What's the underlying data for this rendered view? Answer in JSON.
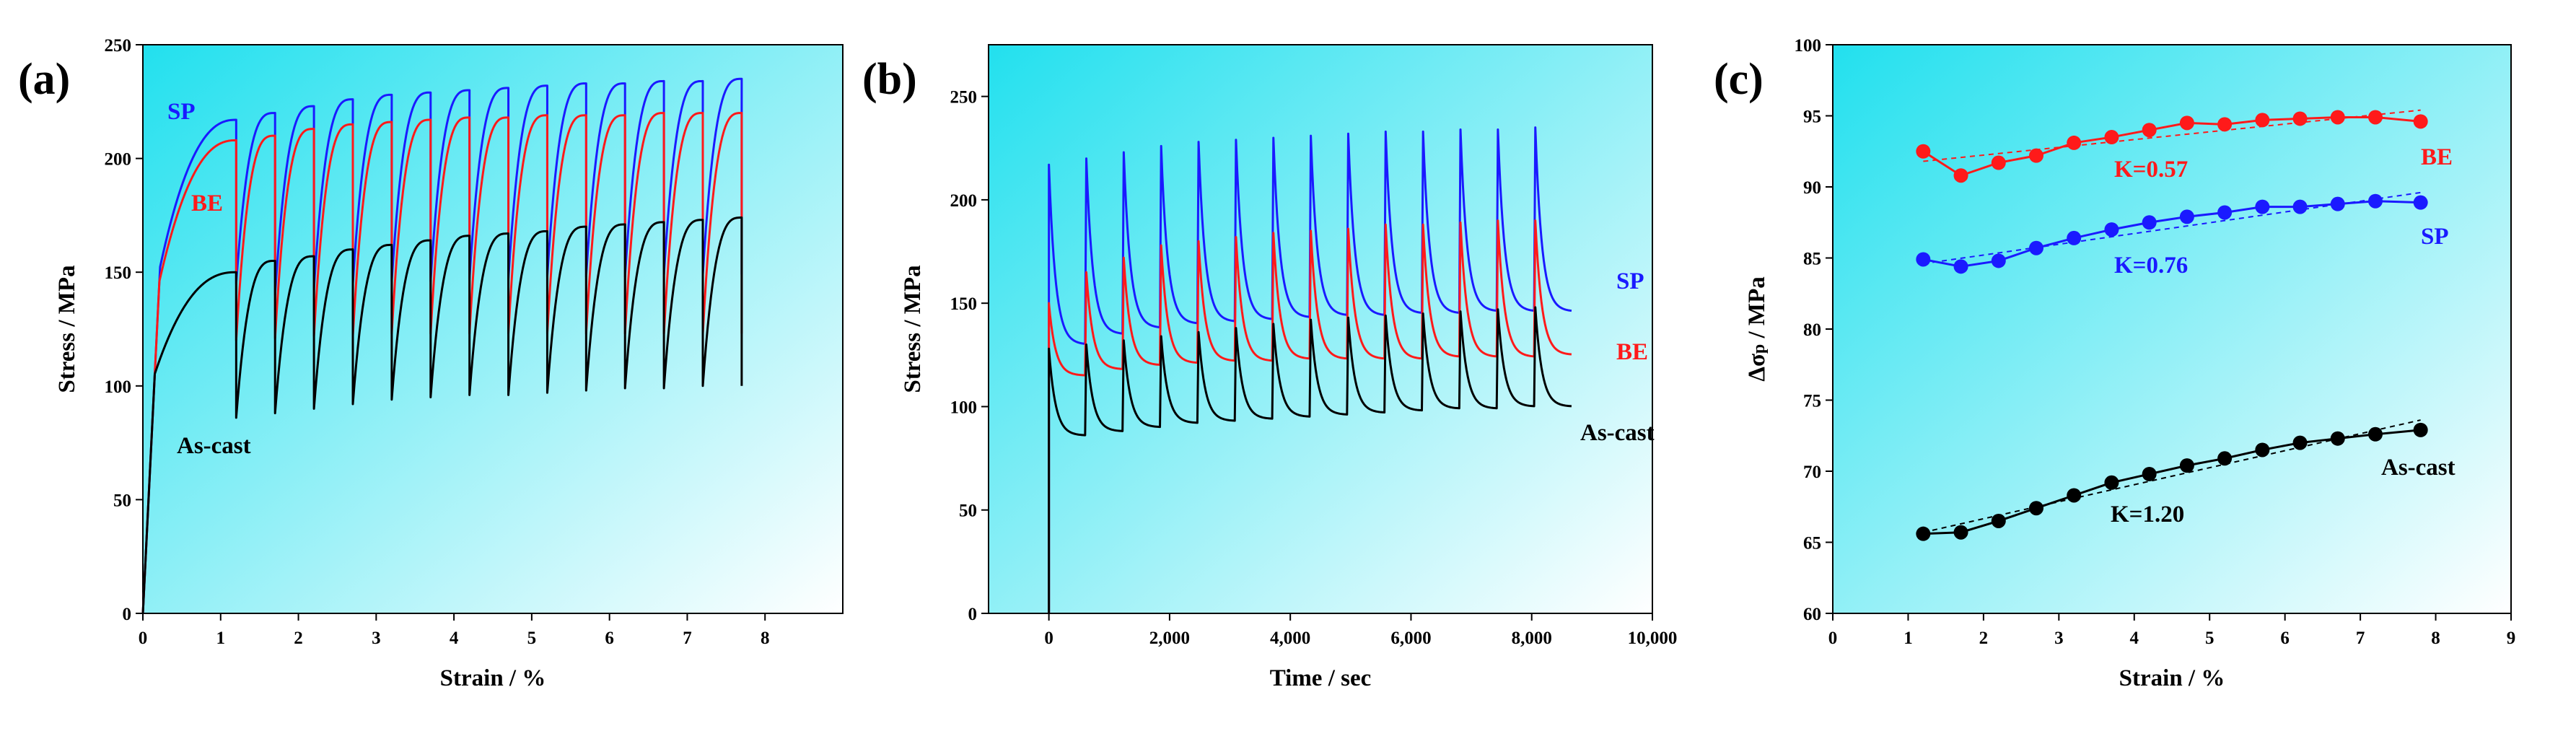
{
  "colors": {
    "SP": "#1a1aff",
    "BE": "#ff1a1a",
    "As-cast": "#000000",
    "bg_from": "#22e0ee",
    "bg_to": "#ffffff"
  },
  "chart_data": [
    {
      "type": "line",
      "panel": "(a)",
      "xlabel": "Strain / %",
      "ylabel": "Stress / MPa",
      "xlim": [
        0,
        9
      ],
      "ylim": [
        0,
        250
      ],
      "xticks": [
        0,
        1,
        2,
        3,
        4,
        5,
        6,
        7,
        8
      ],
      "yticks": [
        0,
        50,
        100,
        150,
        200,
        250
      ],
      "tick_labels_x": [
        "0",
        "1",
        "2",
        "3",
        "4",
        "5",
        "6",
        "7",
        "8"
      ],
      "tick_labels_y": [
        "0",
        "50",
        "100",
        "150",
        "200",
        "250"
      ],
      "relaxation_start_strain": [
        1.2,
        1.7,
        2.2,
        2.7,
        3.2,
        3.7,
        4.2,
        4.7,
        5.2,
        5.7,
        6.2,
        6.7,
        7.2,
        7.7
      ],
      "series": [
        {
          "name": "SP",
          "color": "#1a1aff",
          "label_pos": "upper-left",
          "peaks": [
            217,
            220,
            223,
            226,
            228,
            229,
            230,
            231,
            232,
            233,
            233,
            234,
            234,
            235
          ],
          "drops": [
            145,
            140,
            143,
            145,
            146,
            146,
            147,
            147,
            148,
            148,
            148,
            149,
            149,
            149
          ]
        },
        {
          "name": "BE",
          "color": "#ff1a1a",
          "label_pos": "upper-left",
          "peaks": [
            208,
            210,
            213,
            215,
            216,
            217,
            218,
            218,
            219,
            219,
            219,
            220,
            220,
            220
          ],
          "drops": [
            120,
            121,
            122,
            122,
            123,
            123,
            123,
            123,
            123,
            123,
            123,
            123,
            123,
            123
          ]
        },
        {
          "name": "As-cast",
          "color": "#000000",
          "label_pos": "lower-left",
          "peaks": [
            150,
            155,
            157,
            160,
            162,
            164,
            166,
            167,
            168,
            170,
            171,
            172,
            173,
            174
          ],
          "drops": [
            86,
            88,
            90,
            92,
            94,
            95,
            96,
            96,
            97,
            98,
            99,
            99,
            100,
            100
          ]
        }
      ]
    },
    {
      "type": "line",
      "panel": "(b)",
      "xlabel": "Time / sec",
      "ylabel": "Stress / MPa",
      "xlim": [
        -1000,
        10000
      ],
      "ylim": [
        0,
        275
      ],
      "xticks": [
        0,
        2000,
        4000,
        6000,
        8000,
        10000
      ],
      "yticks": [
        0,
        50,
        100,
        150,
        200,
        250
      ],
      "tick_labels_x": [
        "0",
        "2,000",
        "4,000",
        "6,000",
        "8,000",
        "10,000"
      ],
      "tick_labels_y": [
        "0",
        "50",
        "100",
        "150",
        "200",
        "250"
      ],
      "cycle_start_times": [
        0,
        620,
        1240,
        1860,
        2480,
        3100,
        3720,
        4340,
        4960,
        5580,
        6200,
        6820,
        7440,
        8060
      ],
      "cycle_duration": 600,
      "series": [
        {
          "name": "SP",
          "color": "#1a1aff",
          "label_pos": "right",
          "peaks": [
            217,
            220,
            223,
            226,
            228,
            229,
            230,
            231,
            232,
            233,
            233,
            234,
            234,
            235
          ],
          "ends": [
            130,
            135,
            138,
            140,
            141,
            142,
            143,
            144,
            144,
            145,
            145,
            146,
            146,
            146
          ]
        },
        {
          "name": "BE",
          "color": "#ff1a1a",
          "label_pos": "right",
          "peaks": [
            150,
            165,
            172,
            178,
            180,
            182,
            184,
            185,
            186,
            188,
            188,
            189,
            190,
            190
          ],
          "ends": [
            115,
            118,
            120,
            121,
            122,
            122,
            123,
            123,
            123,
            123,
            124,
            124,
            124,
            125
          ]
        },
        {
          "name": "As-cast",
          "color": "#000000",
          "label_pos": "right",
          "peaks": [
            128,
            130,
            132,
            134,
            136,
            138,
            140,
            142,
            143,
            144,
            145,
            146,
            147,
            148
          ],
          "ends": [
            86,
            88,
            90,
            92,
            93,
            94,
            95,
            96,
            97,
            98,
            99,
            99,
            100,
            100
          ]
        }
      ]
    },
    {
      "type": "scatter",
      "panel": "(c)",
      "xlabel": "Strain / %",
      "ylabel": "Δσ",
      "ylabel_sub": "p",
      "ylabel_suffix": " / MPa",
      "xlim": [
        0,
        9
      ],
      "ylim": [
        60,
        100
      ],
      "xticks": [
        0,
        1,
        2,
        3,
        4,
        5,
        6,
        7,
        8,
        9
      ],
      "yticks": [
        60,
        65,
        70,
        75,
        80,
        85,
        90,
        95,
        100
      ],
      "tick_labels_x": [
        "0",
        "1",
        "2",
        "3",
        "4",
        "5",
        "6",
        "7",
        "8",
        "9"
      ],
      "tick_labels_y": [
        "60",
        "65",
        "70",
        "75",
        "80",
        "85",
        "90",
        "95",
        "100"
      ],
      "x": [
        1.2,
        1.7,
        2.2,
        2.7,
        3.2,
        3.7,
        4.2,
        4.7,
        5.2,
        5.7,
        6.2,
        6.7,
        7.2,
        7.8
      ],
      "series": [
        {
          "name": "BE",
          "color": "#ff1a1a",
          "fit_label": "K=0.57",
          "values": [
            92.5,
            90.8,
            91.7,
            92.2,
            93.1,
            93.5,
            94.0,
            94.5,
            94.4,
            94.7,
            94.8,
            94.9,
            94.9,
            94.6
          ],
          "fit": [
            91.8,
            95.4
          ]
        },
        {
          "name": "SP",
          "color": "#1a1aff",
          "fit_label": "K=0.76",
          "values": [
            84.9,
            84.4,
            84.8,
            85.7,
            86.4,
            87.0,
            87.5,
            87.9,
            88.2,
            88.6,
            88.6,
            88.8,
            89.0,
            88.9
          ],
          "fit": [
            84.6,
            89.6
          ]
        },
        {
          "name": "As-cast",
          "color": "#000000",
          "fit_label": "K=1.20",
          "values": [
            65.6,
            65.7,
            66.5,
            67.4,
            68.3,
            69.2,
            69.8,
            70.4,
            70.9,
            71.5,
            72.0,
            72.3,
            72.6,
            72.9
          ],
          "fit": [
            65.7,
            73.6
          ]
        }
      ]
    }
  ]
}
